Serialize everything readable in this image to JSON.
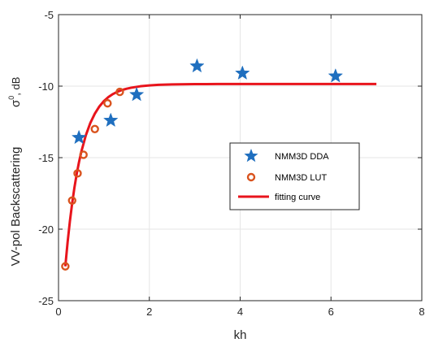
{
  "chart_data": {
    "type": "scatter",
    "title": "",
    "xlabel": "kh",
    "ylabel": "VV-pol Backscattering",
    "ylabel_symbol": "σ",
    "ylabel_unit": ", dB",
    "xlim": [
      0,
      8
    ],
    "ylim": [
      -25,
      -5
    ],
    "xticks": [
      0,
      2,
      4,
      6,
      8
    ],
    "yticks": [
      -25,
      -20,
      -15,
      -10,
      -5
    ],
    "grid": true,
    "legend_position": "center-right",
    "series": [
      {
        "name": "NMM3D DDA",
        "marker": "star",
        "color": "#1f6fbf",
        "x": [
          0.45,
          1.15,
          1.72,
          3.05,
          4.05,
          6.1
        ],
        "y": [
          -13.6,
          -12.4,
          -10.6,
          -8.6,
          -9.1,
          -9.3
        ]
      },
      {
        "name": "NMM3D LUT",
        "marker": "circle",
        "color": "#d9531e",
        "x": [
          0.15,
          0.3,
          0.42,
          0.55,
          0.8,
          1.08,
          1.35
        ],
        "y": [
          -22.6,
          -18.0,
          -16.1,
          -14.8,
          -13.0,
          -11.2,
          -10.4
        ]
      },
      {
        "name": "fitting curve",
        "marker": "line",
        "color": "#e8141c",
        "x": [
          0.15,
          0.2,
          0.25,
          0.3,
          0.35,
          0.4,
          0.45,
          0.5,
          0.6,
          0.7,
          0.8,
          0.9,
          1.0,
          1.1,
          1.2,
          1.3,
          1.4,
          1.5,
          1.6,
          1.8,
          2.0,
          2.2,
          2.5,
          3.0,
          3.5,
          4.0,
          5.0,
          6.0,
          7.0
        ],
        "y": [
          -22.6,
          -20.92,
          -19.46,
          -18.2,
          -17.1,
          -16.15,
          -15.33,
          -14.61,
          -13.45,
          -12.58,
          -11.92,
          -11.42,
          -11.04,
          -10.76,
          -10.55,
          -10.39,
          -10.27,
          -10.18,
          -10.11,
          -10.01,
          -9.95,
          -9.91,
          -9.88,
          -9.86,
          -9.85,
          -9.85,
          -9.85,
          -9.85,
          -9.85
        ]
      }
    ]
  }
}
